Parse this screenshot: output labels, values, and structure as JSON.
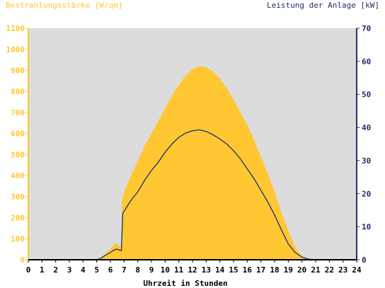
{
  "colors": {
    "irradiance": "#ffc832",
    "power": "#1f2f6e",
    "plot_bg": "#dcdcdc",
    "left_axis": "#ffc832",
    "right_axis": "#1f2f6e",
    "bottom_axis": "#000000"
  },
  "chart_data": {
    "type": "area",
    "title": "",
    "xlabel": "Uhrzeit in Stunden",
    "ylabel_left": "Bestrahlungsstärke [W/qm]",
    "ylabel_right": "Leistung der Anlage [kW]",
    "xlim": [
      0,
      24
    ],
    "ylim_left": [
      0,
      1100
    ],
    "ylim_right": [
      0,
      70
    ],
    "x_ticks": [
      "0",
      "1",
      "2",
      "3",
      "4",
      "5",
      "6",
      "7",
      "8",
      "9",
      "10",
      "11",
      "12",
      "13",
      "14",
      "15",
      "16",
      "17",
      "18",
      "19",
      "20",
      "21",
      "22",
      "23",
      "24"
    ],
    "y_left_ticks": [
      "0",
      "100",
      "200",
      "300",
      "400",
      "500",
      "600",
      "700",
      "800",
      "900",
      "1000",
      "1100"
    ],
    "y_right_ticks": [
      "0",
      "10",
      "20",
      "30",
      "40",
      "50",
      "60",
      "70"
    ],
    "grid": false,
    "series": [
      {
        "name": "Bestrahlungsstärke [W/qm]",
        "axis": "left",
        "kind": "area",
        "points": [
          [
            0,
            0
          ],
          [
            4.8,
            0
          ],
          [
            5.3,
            10
          ],
          [
            5.8,
            40
          ],
          [
            6.2,
            65
          ],
          [
            6.4,
            80
          ],
          [
            6.6,
            70
          ],
          [
            6.8,
            60
          ],
          [
            6.85,
            280
          ],
          [
            7.0,
            320
          ],
          [
            7.5,
            400
          ],
          [
            8,
            470
          ],
          [
            8.5,
            540
          ],
          [
            9,
            600
          ],
          [
            9.5,
            660
          ],
          [
            10,
            720
          ],
          [
            10.5,
            780
          ],
          [
            11,
            830
          ],
          [
            11.5,
            875
          ],
          [
            12,
            905
          ],
          [
            12.5,
            920
          ],
          [
            13,
            915
          ],
          [
            13.5,
            895
          ],
          [
            14,
            860
          ],
          [
            14.5,
            815
          ],
          [
            15,
            760
          ],
          [
            15.5,
            700
          ],
          [
            16,
            640
          ],
          [
            16.5,
            570
          ],
          [
            17,
            490
          ],
          [
            17.5,
            410
          ],
          [
            18,
            320
          ],
          [
            18.5,
            225
          ],
          [
            19,
            140
          ],
          [
            19.5,
            60
          ],
          [
            20,
            15
          ],
          [
            20.5,
            3
          ],
          [
            21,
            0
          ],
          [
            24,
            0
          ]
        ]
      },
      {
        "name": "Leistung der Anlage [kW]",
        "axis": "right",
        "kind": "line",
        "points": [
          [
            0,
            0
          ],
          [
            5,
            0
          ],
          [
            5.3,
            0.5
          ],
          [
            5.7,
            1.5
          ],
          [
            6.1,
            2.5
          ],
          [
            6.4,
            3.2
          ],
          [
            6.8,
            2.8
          ],
          [
            6.9,
            14
          ],
          [
            7.2,
            16
          ],
          [
            7.6,
            18.5
          ],
          [
            8,
            20.5
          ],
          [
            8.5,
            24
          ],
          [
            9,
            27
          ],
          [
            9.5,
            29.5
          ],
          [
            10,
            32.5
          ],
          [
            10.5,
            35
          ],
          [
            11,
            37
          ],
          [
            11.5,
            38.3
          ],
          [
            12,
            39
          ],
          [
            12.5,
            39.3
          ],
          [
            13,
            38.8
          ],
          [
            13.5,
            37.8
          ],
          [
            14,
            36.5
          ],
          [
            14.5,
            35
          ],
          [
            15,
            33
          ],
          [
            15.5,
            30.5
          ],
          [
            16,
            27.5
          ],
          [
            16.5,
            24.5
          ],
          [
            17,
            21
          ],
          [
            17.5,
            17.5
          ],
          [
            18,
            13.5
          ],
          [
            18.5,
            9
          ],
          [
            19,
            4.8
          ],
          [
            19.5,
            2.2
          ],
          [
            20,
            0.8
          ],
          [
            20.5,
            0.2
          ],
          [
            21,
            0
          ],
          [
            24,
            0
          ]
        ]
      }
    ]
  }
}
